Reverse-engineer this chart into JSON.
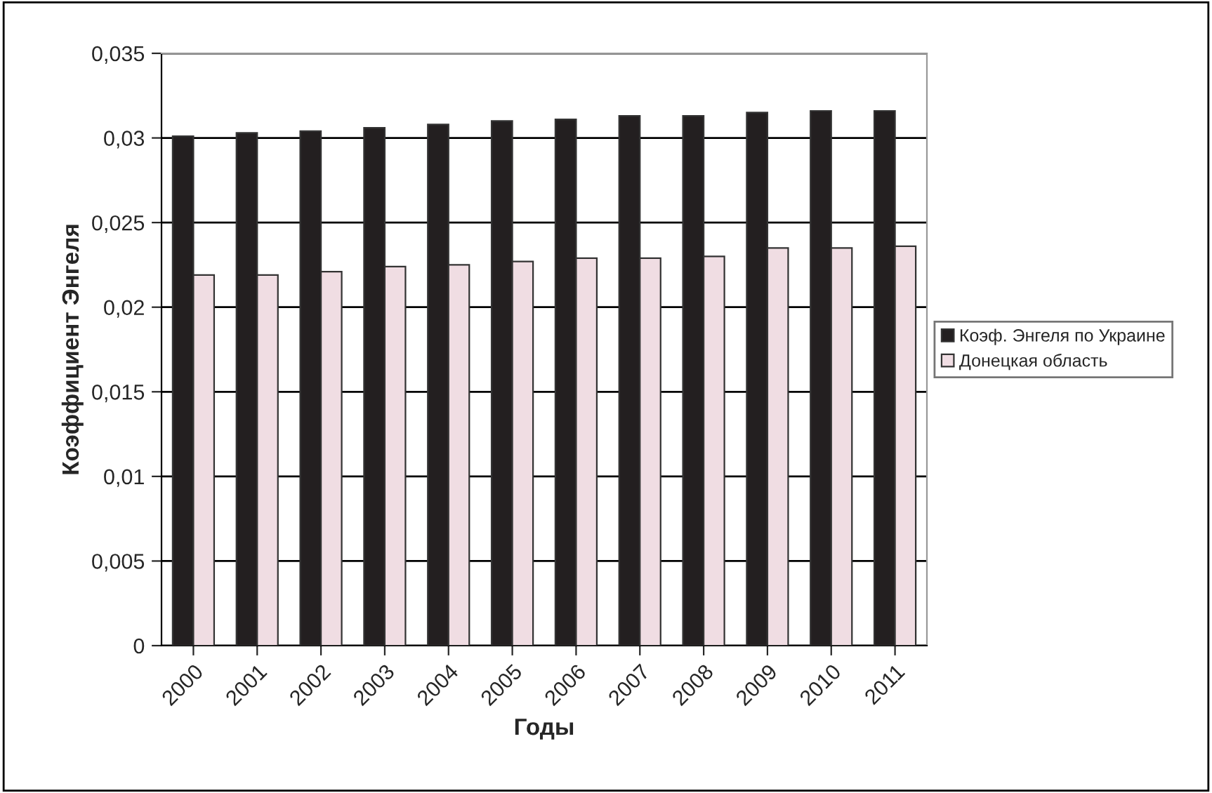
{
  "chart_data": {
    "type": "bar",
    "xlabel": "Годы",
    "ylabel": "Коэффициент Энгеля",
    "categories": [
      "2000",
      "2001",
      "2002",
      "2003",
      "2004",
      "2005",
      "2006",
      "2007",
      "2008",
      "2009",
      "2010",
      "2011"
    ],
    "series": [
      {
        "name": "Коэф. Энгеля по Украине",
        "color": "#231f20",
        "values": [
          0.0301,
          0.0303,
          0.0304,
          0.0306,
          0.0308,
          0.031,
          0.0311,
          0.0313,
          0.0313,
          0.0315,
          0.0316,
          0.0316
        ]
      },
      {
        "name": "Донецкая область",
        "color": "#f0dde3",
        "values": [
          0.0219,
          0.0219,
          0.0221,
          0.0224,
          0.0225,
          0.0227,
          0.0229,
          0.0229,
          0.023,
          0.0235,
          0.0235,
          0.0236
        ]
      }
    ],
    "ylim": [
      0,
      0.035
    ],
    "yticks": [
      {
        "value": 0,
        "label": "0"
      },
      {
        "value": 0.005,
        "label": "0,005"
      },
      {
        "value": 0.01,
        "label": "0,01"
      },
      {
        "value": 0.015,
        "label": "0,015"
      },
      {
        "value": 0.02,
        "label": "0,02"
      },
      {
        "value": 0.025,
        "label": "0,025"
      },
      {
        "value": 0.03,
        "label": "0,03"
      },
      {
        "value": 0.035,
        "label": "0,035"
      }
    ],
    "grid": "y",
    "legend": "right"
  }
}
